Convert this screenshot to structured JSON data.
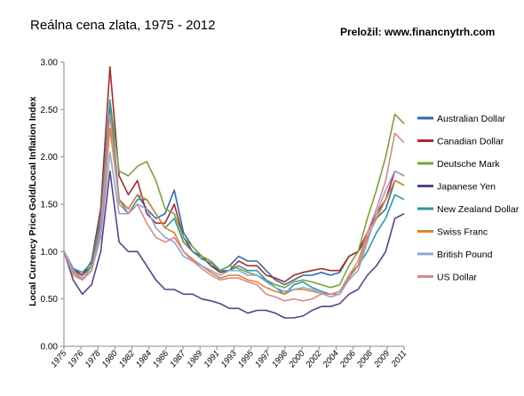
{
  "header": {
    "title": "Reálna cena zlata, 1975 - 2012",
    "credit": "Preložil: www.financnytrh.com"
  },
  "chart_data": {
    "type": "line",
    "title": "Reálna cena zlata, 1975 - 2012",
    "xlabel": "",
    "ylabel": "Local Currency Price Gold/Local Inflation Index",
    "xlim": [
      1975,
      2012
    ],
    "ylim": [
      0,
      3.0
    ],
    "y_ticks": [
      "0.00",
      "0.50",
      "1.00",
      "1.50",
      "2.00",
      "2.50",
      "3.00"
    ],
    "x_ticks": [
      "1975",
      "1976",
      "1978",
      "1980",
      "1982",
      "1984",
      "1986",
      "1987",
      "1989",
      "1991",
      "1993",
      "1995",
      "1997",
      "1998",
      "2000",
      "2002",
      "2004",
      "2006",
      "2008",
      "2009",
      "2011"
    ],
    "grid": false,
    "legend_position": "right",
    "x": [
      1975,
      1976,
      1977,
      1978,
      1979,
      1980,
      1981,
      1982,
      1983,
      1984,
      1985,
      1986,
      1987,
      1988,
      1989,
      1990,
      1991,
      1992,
      1993,
      1994,
      1995,
      1996,
      1997,
      1998,
      1999,
      2000,
      2001,
      2002,
      2003,
      2004,
      2005,
      2006,
      2007,
      2008,
      2009,
      2010,
      2011,
      2012
    ],
    "series": [
      {
        "name": "Australian Dollar",
        "color": "#2f6ab0",
        "values": [
          1.0,
          0.8,
          0.75,
          0.85,
          1.3,
          2.55,
          1.55,
          1.45,
          1.6,
          1.45,
          1.35,
          1.4,
          1.65,
          1.2,
          1.05,
          0.95,
          0.85,
          0.8,
          0.85,
          0.95,
          0.9,
          0.9,
          0.8,
          0.7,
          0.65,
          0.7,
          0.75,
          0.75,
          0.78,
          0.75,
          0.78,
          0.95,
          1.0,
          1.15,
          1.35,
          1.45,
          1.75,
          1.7
        ]
      },
      {
        "name": "Canadian Dollar",
        "color": "#a52a2a",
        "values": [
          1.0,
          0.82,
          0.75,
          0.9,
          1.45,
          2.95,
          1.8,
          1.6,
          1.75,
          1.4,
          1.3,
          1.3,
          1.5,
          1.15,
          1.0,
          0.95,
          0.85,
          0.78,
          0.8,
          0.9,
          0.85,
          0.85,
          0.75,
          0.72,
          0.68,
          0.75,
          0.78,
          0.8,
          0.82,
          0.8,
          0.8,
          0.95,
          1.0,
          1.2,
          1.4,
          1.55,
          1.85,
          1.8
        ]
      },
      {
        "name": "Deutsche Mark",
        "color": "#7aa33a",
        "values": [
          1.0,
          0.8,
          0.7,
          0.85,
          1.35,
          2.6,
          1.85,
          1.8,
          1.9,
          1.95,
          1.75,
          1.45,
          1.4,
          1.15,
          1.05,
          0.95,
          0.9,
          0.8,
          0.85,
          0.82,
          0.78,
          0.75,
          0.7,
          0.65,
          0.62,
          0.68,
          0.7,
          0.68,
          0.65,
          0.62,
          0.65,
          0.85,
          1.0,
          1.35,
          1.65,
          2.0,
          2.45,
          2.35
        ]
      },
      {
        "name": "Japanese Yen",
        "color": "#5b3f8c",
        "values": [
          1.0,
          0.7,
          0.55,
          0.65,
          1.0,
          1.85,
          1.1,
          1.0,
          1.0,
          0.85,
          0.7,
          0.6,
          0.6,
          0.55,
          0.55,
          0.5,
          0.48,
          0.45,
          0.4,
          0.4,
          0.35,
          0.38,
          0.38,
          0.35,
          0.3,
          0.3,
          0.32,
          0.38,
          0.42,
          0.42,
          0.45,
          0.55,
          0.6,
          0.75,
          0.85,
          1.0,
          1.35,
          1.4
        ]
      },
      {
        "name": "New Zealand Dollar",
        "color": "#2d98a8",
        "values": [
          1.0,
          0.82,
          0.78,
          0.88,
          1.35,
          2.6,
          1.55,
          1.4,
          1.55,
          1.55,
          1.4,
          1.25,
          1.35,
          1.1,
          1.0,
          0.92,
          0.88,
          0.8,
          0.8,
          0.85,
          0.8,
          0.8,
          0.7,
          0.62,
          0.55,
          0.65,
          0.68,
          0.62,
          0.58,
          0.55,
          0.55,
          0.75,
          0.85,
          1.0,
          1.2,
          1.35,
          1.6,
          1.55
        ]
      },
      {
        "name": "Swiss Franc",
        "color": "#e2832a",
        "values": [
          1.0,
          0.78,
          0.7,
          0.8,
          1.2,
          2.3,
          1.55,
          1.45,
          1.6,
          1.55,
          1.4,
          1.25,
          1.2,
          1.0,
          0.92,
          0.85,
          0.78,
          0.72,
          0.75,
          0.75,
          0.7,
          0.68,
          0.62,
          0.58,
          0.55,
          0.6,
          0.6,
          0.58,
          0.56,
          0.55,
          0.55,
          0.72,
          0.85,
          1.15,
          1.35,
          1.55,
          1.75,
          1.7
        ]
      },
      {
        "name": "British Pound",
        "color": "#8aa8d8",
        "values": [
          1.0,
          0.8,
          0.72,
          0.8,
          1.15,
          2.05,
          1.4,
          1.4,
          1.5,
          1.45,
          1.25,
          1.15,
          1.1,
          0.95,
          0.9,
          0.85,
          0.8,
          0.75,
          0.8,
          0.8,
          0.75,
          0.75,
          0.68,
          0.62,
          0.58,
          0.6,
          0.62,
          0.6,
          0.56,
          0.52,
          0.55,
          0.7,
          0.8,
          1.1,
          1.4,
          1.65,
          1.85,
          1.8
        ]
      },
      {
        "name": "US Dollar",
        "color": "#d98890",
        "values": [
          1.0,
          0.75,
          0.7,
          0.8,
          1.25,
          2.45,
          1.5,
          1.4,
          1.5,
          1.3,
          1.15,
          1.1,
          1.15,
          1.0,
          0.9,
          0.82,
          0.75,
          0.7,
          0.72,
          0.72,
          0.68,
          0.65,
          0.55,
          0.52,
          0.48,
          0.5,
          0.48,
          0.5,
          0.55,
          0.55,
          0.58,
          0.75,
          0.9,
          1.2,
          1.45,
          1.75,
          2.25,
          2.15
        ]
      }
    ]
  }
}
